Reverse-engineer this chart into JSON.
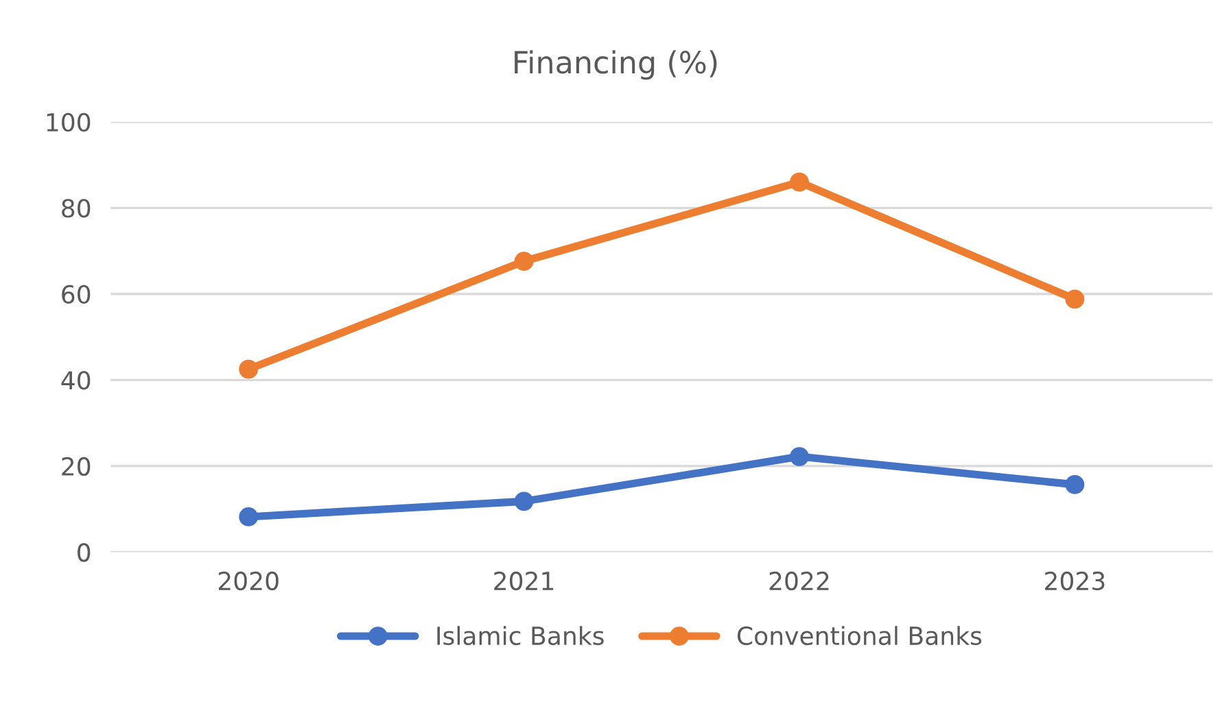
{
  "chart_data": {
    "type": "line",
    "title": "Financing (%)",
    "categories": [
      "2020",
      "2021",
      "2022",
      "2023"
    ],
    "series": [
      {
        "name": "Islamic Banks",
        "color": "#4472c4",
        "values": [
          8.2,
          11.8,
          22.2,
          15.7
        ]
      },
      {
        "name": "Conventional Banks",
        "color": "#ed7d31",
        "values": [
          42.5,
          67.6,
          86,
          58.8
        ]
      }
    ],
    "ylim": [
      0,
      100
    ],
    "yticks": [
      0,
      20,
      40,
      60,
      80,
      100
    ],
    "grid": "y",
    "legend": "bottom",
    "marker": "circle",
    "line_style": "solid"
  }
}
